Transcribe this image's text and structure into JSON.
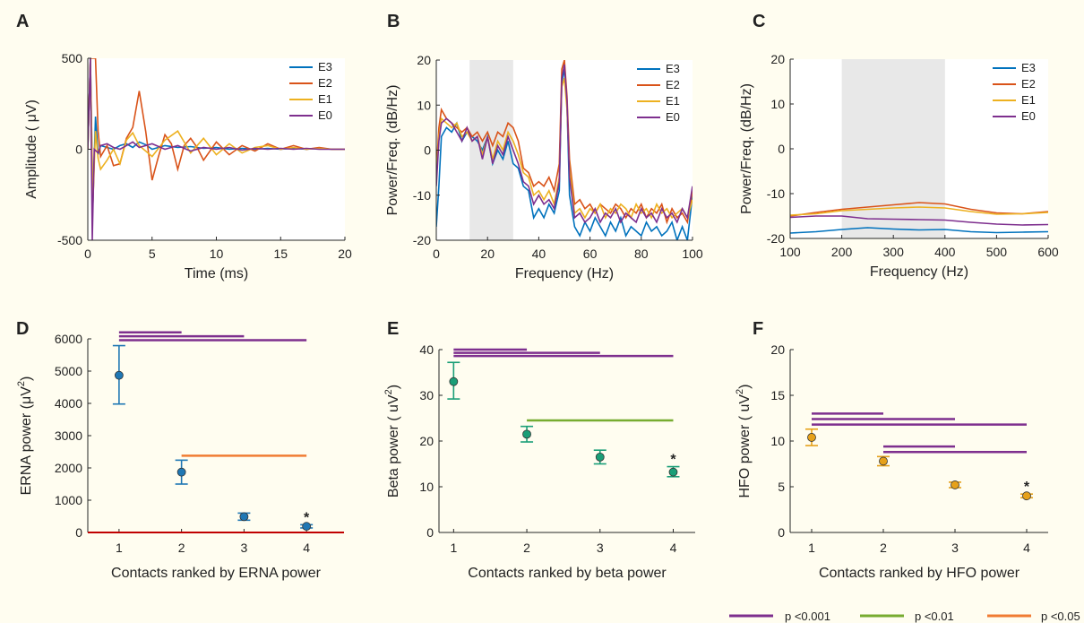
{
  "legend": {
    "label_p001": "p <0.001",
    "label_p01": "p <0.01",
    "label_p05": "p <0.05",
    "color_p001": "#7e2f8e",
    "color_p01": "#77ac30",
    "color_p05": "#f07c33"
  },
  "colors": {
    "E3": "#0072bd",
    "E2": "#d95319",
    "E1": "#edb120",
    "E0": "#7e2f8e",
    "shade": "#e8e8e8",
    "zero_line_D": "#c00000",
    "D_marker": "#1f77b4",
    "E_marker": "#1a9e77",
    "F_marker": "#e6a11a"
  },
  "chart_data": [
    {
      "letter": "A",
      "type": "line",
      "xlabel": "Time (ms)",
      "ylabel": "Amplitude ( μV)",
      "xlim": [
        0,
        20
      ],
      "ylim": [
        -500,
        500
      ],
      "xticks": [
        0,
        5,
        10,
        15,
        20
      ],
      "yticks": [
        -500,
        0,
        500
      ],
      "legend_position": "top-right",
      "series": [
        {
          "name": "E3",
          "color": "#0072bd",
          "x": [
            0,
            0.2,
            0.4,
            0.6,
            0.8,
            1.0,
            1.5,
            2.0,
            2.5,
            3.0,
            3.5,
            4.0,
            4.5,
            5.0,
            6.0,
            7.0,
            8.0,
            9.0,
            10,
            11,
            12,
            13,
            14,
            15,
            16,
            17,
            18,
            19,
            20
          ],
          "y": [
            0,
            500,
            -300,
            180,
            -30,
            20,
            10,
            0,
            20,
            30,
            10,
            40,
            25,
            0,
            20,
            10,
            15,
            5,
            10,
            0,
            5,
            0,
            5,
            0,
            5,
            0,
            5,
            0,
            0
          ]
        },
        {
          "name": "E2",
          "color": "#d95319",
          "x": [
            0,
            0.2,
            0.4,
            0.6,
            0.8,
            1.0,
            1.5,
            2.0,
            2.5,
            3.0,
            3.5,
            4.0,
            4.5,
            5.0,
            5.5,
            6.0,
            6.5,
            7.0,
            7.5,
            8.0,
            8.5,
            9.0,
            10,
            11,
            12,
            13,
            14,
            15,
            16,
            17,
            18,
            19,
            20
          ],
          "y": [
            0,
            500,
            500,
            500,
            100,
            -40,
            20,
            -90,
            -80,
            60,
            120,
            320,
            100,
            -170,
            -40,
            80,
            30,
            -110,
            20,
            60,
            10,
            -60,
            40,
            -30,
            20,
            -10,
            30,
            0,
            20,
            0,
            10,
            0,
            0
          ]
        },
        {
          "name": "E1",
          "color": "#edb120",
          "x": [
            0,
            0.2,
            0.4,
            0.6,
            0.8,
            1.0,
            1.5,
            2.0,
            2.5,
            3.0,
            3.5,
            4.0,
            5.0,
            6.0,
            7.0,
            8.0,
            9.0,
            10,
            11,
            12,
            13,
            14,
            15,
            16,
            17,
            18,
            19,
            20
          ],
          "y": [
            0,
            500,
            -300,
            100,
            -50,
            -110,
            -60,
            0,
            -80,
            50,
            90,
            20,
            -40,
            50,
            100,
            -20,
            60,
            -30,
            30,
            -20,
            10,
            20,
            0,
            10,
            0,
            5,
            0,
            0
          ]
        },
        {
          "name": "E0",
          "color": "#7e2f8e",
          "x": [
            0,
            0.2,
            0.35,
            0.5,
            0.8,
            1.0,
            1.5,
            2.0,
            2.5,
            3.0,
            3.5,
            4.0,
            5.0,
            6.0,
            7.0,
            8.0,
            9.0,
            10,
            11,
            12,
            13,
            14,
            15,
            16,
            17,
            18,
            19,
            20
          ],
          "y": [
            0,
            500,
            -500,
            0,
            -20,
            20,
            30,
            10,
            0,
            20,
            40,
            10,
            30,
            0,
            20,
            -10,
            10,
            0,
            10,
            -5,
            5,
            0,
            5,
            0,
            5,
            0,
            0,
            0
          ]
        }
      ]
    },
    {
      "letter": "B",
      "type": "line",
      "xlabel": "Frequency (Hz)",
      "ylabel": "Power/Freq. (dB/Hz)",
      "xlim": [
        0,
        100
      ],
      "ylim": [
        -20,
        20
      ],
      "xticks": [
        0,
        20,
        40,
        60,
        80,
        100
      ],
      "yticks": [
        -20,
        -10,
        0,
        10,
        20
      ],
      "shaded_x": [
        13,
        30
      ],
      "legend_position": "top-right",
      "series": [
        {
          "name": "E3",
          "color": "#0072bd",
          "x": [
            0,
            1,
            2,
            4,
            6,
            8,
            10,
            12,
            14,
            16,
            18,
            20,
            22,
            24,
            26,
            28,
            30,
            32,
            34,
            36,
            38,
            40,
            42,
            44,
            46,
            48,
            49,
            50,
            51,
            52,
            54,
            56,
            58,
            60,
            62,
            64,
            66,
            68,
            70,
            72,
            74,
            76,
            78,
            80,
            82,
            84,
            86,
            88,
            90,
            92,
            94,
            96,
            98,
            100
          ],
          "y": [
            -17,
            -8,
            3,
            5,
            4,
            6,
            2,
            4,
            3,
            2,
            0,
            3,
            -3,
            0,
            -2,
            2,
            -3,
            -4,
            -8,
            -9,
            -15,
            -13,
            -15,
            -12,
            -14,
            -9,
            15,
            18,
            10,
            -10,
            -17,
            -19,
            -16,
            -18,
            -15,
            -17,
            -19,
            -16,
            -18,
            -15,
            -19,
            -17,
            -18,
            -19,
            -16,
            -18,
            -17,
            -19,
            -18,
            -16,
            -20,
            -17,
            -20,
            -10
          ]
        },
        {
          "name": "E2",
          "color": "#d95319",
          "x": [
            0,
            1,
            2,
            4,
            6,
            8,
            10,
            12,
            14,
            16,
            18,
            20,
            22,
            24,
            26,
            28,
            30,
            32,
            34,
            36,
            38,
            40,
            42,
            44,
            46,
            48,
            49,
            50,
            51,
            52,
            54,
            56,
            58,
            60,
            62,
            64,
            66,
            68,
            70,
            72,
            74,
            76,
            78,
            80,
            82,
            84,
            86,
            88,
            90,
            92,
            94,
            96,
            98,
            100
          ],
          "y": [
            -5,
            5,
            9,
            7,
            6,
            5,
            4,
            5,
            3,
            4,
            2,
            4,
            1,
            4,
            3,
            6,
            5,
            2,
            -4,
            -5,
            -8,
            -7,
            -8,
            -6,
            -9,
            -3,
            18,
            20,
            12,
            -2,
            -12,
            -11,
            -13,
            -12,
            -14,
            -12,
            -13,
            -14,
            -12,
            -13,
            -15,
            -13,
            -14,
            -12,
            -15,
            -13,
            -14,
            -12,
            -16,
            -13,
            -15,
            -14,
            -16,
            -9
          ]
        },
        {
          "name": "E1",
          "color": "#edb120",
          "x": [
            0,
            1,
            2,
            4,
            6,
            8,
            10,
            12,
            14,
            16,
            18,
            20,
            22,
            24,
            26,
            28,
            30,
            32,
            34,
            36,
            38,
            40,
            42,
            44,
            46,
            48,
            49,
            50,
            51,
            52,
            54,
            56,
            58,
            60,
            62,
            64,
            66,
            68,
            70,
            72,
            74,
            76,
            78,
            80,
            82,
            84,
            86,
            88,
            90,
            92,
            94,
            96,
            98,
            100
          ],
          "y": [
            -6,
            3,
            7,
            6,
            5,
            6,
            3,
            4,
            2,
            3,
            -1,
            3,
            -2,
            2,
            0,
            4,
            2,
            -1,
            -5,
            -6,
            -10,
            -9,
            -11,
            -9,
            -12,
            -6,
            14,
            16,
            9,
            -4,
            -14,
            -13,
            -15,
            -13,
            -14,
            -12,
            -15,
            -13,
            -14,
            -12,
            -13,
            -15,
            -12,
            -14,
            -13,
            -15,
            -12,
            -14,
            -13,
            -15,
            -14,
            -13,
            -15,
            -11
          ]
        },
        {
          "name": "E0",
          "color": "#7e2f8e",
          "x": [
            0,
            1,
            2,
            4,
            6,
            8,
            10,
            12,
            14,
            16,
            18,
            20,
            22,
            24,
            26,
            28,
            30,
            32,
            34,
            36,
            38,
            40,
            42,
            44,
            46,
            48,
            49,
            50,
            51,
            52,
            54,
            56,
            58,
            60,
            62,
            64,
            66,
            68,
            70,
            72,
            74,
            76,
            78,
            80,
            82,
            84,
            86,
            88,
            90,
            92,
            94,
            96,
            98,
            100
          ],
          "y": [
            -8,
            2,
            6,
            7,
            6,
            4,
            2,
            5,
            2,
            3,
            -2,
            3,
            -3,
            1,
            -1,
            3,
            0,
            -3,
            -7,
            -8,
            -12,
            -10,
            -12,
            -11,
            -13,
            -7,
            16,
            19,
            11,
            -6,
            -15,
            -14,
            -16,
            -15,
            -13,
            -16,
            -14,
            -15,
            -13,
            -16,
            -14,
            -15,
            -16,
            -13,
            -15,
            -14,
            -16,
            -13,
            -15,
            -14,
            -16,
            -13,
            -15,
            -8
          ]
        }
      ]
    },
    {
      "letter": "C",
      "type": "line",
      "xlabel": "Frequency (Hz)",
      "ylabel": "Power/Freq. (dB/Hz)",
      "xlim": [
        100,
        600
      ],
      "ylim": [
        -20,
        20
      ],
      "xticks": [
        100,
        200,
        300,
        400,
        500,
        600
      ],
      "yticks": [
        -20,
        -10,
        0,
        10,
        20
      ],
      "shaded_x": [
        200,
        400
      ],
      "legend_position": "top-right",
      "series": [
        {
          "name": "E3",
          "color": "#0072bd",
          "x": [
            100,
            150,
            200,
            250,
            300,
            350,
            400,
            450,
            500,
            550,
            600
          ],
          "y": [
            -18.8,
            -18.5,
            -18.0,
            -17.6,
            -17.9,
            -18.1,
            -18.0,
            -18.5,
            -18.7,
            -18.6,
            -18.5
          ]
        },
        {
          "name": "E2",
          "color": "#d95319",
          "x": [
            100,
            150,
            200,
            250,
            300,
            350,
            400,
            450,
            500,
            550,
            600
          ],
          "y": [
            -15.0,
            -14.2,
            -13.5,
            -13.0,
            -12.5,
            -12.0,
            -12.3,
            -13.5,
            -14.3,
            -14.5,
            -14.0
          ]
        },
        {
          "name": "E1",
          "color": "#edb120",
          "x": [
            100,
            150,
            200,
            250,
            300,
            350,
            400,
            450,
            500,
            550,
            600
          ],
          "y": [
            -14.8,
            -14.5,
            -13.8,
            -13.5,
            -13.2,
            -13.0,
            -13.2,
            -14.0,
            -14.6,
            -14.5,
            -14.2
          ]
        },
        {
          "name": "E0",
          "color": "#7e2f8e",
          "x": [
            100,
            150,
            200,
            250,
            300,
            350,
            400,
            450,
            500,
            550,
            600
          ],
          "y": [
            -15.3,
            -15.0,
            -15.0,
            -15.6,
            -15.7,
            -15.8,
            -15.9,
            -16.4,
            -16.8,
            -17.0,
            -16.9
          ]
        }
      ]
    },
    {
      "letter": "D",
      "type": "scatter",
      "xlabel": "Contacts ranked by ERNA power",
      "ylabel": "ERNA power (μV",
      "ylabel_sup": "2",
      "ylabel_close": ")",
      "categories": [
        "1",
        "2",
        "3",
        "4"
      ],
      "values": [
        4870,
        1870,
        490,
        190
      ],
      "error_low": [
        3980,
        1500,
        380,
        140
      ],
      "error_high": [
        5790,
        2240,
        600,
        240
      ],
      "xlim": [
        0.5,
        4.6
      ],
      "ylim": [
        0,
        6000
      ],
      "yticks": [
        0,
        1000,
        2000,
        3000,
        4000,
        5000,
        6000
      ],
      "zero_line": true,
      "star_at": 4,
      "star_label": "*",
      "sig_bars": [
        {
          "from": 1,
          "to": 2,
          "y": 6200,
          "level": "p001"
        },
        {
          "from": 1,
          "to": 3,
          "y": 6080,
          "level": "p001"
        },
        {
          "from": 1,
          "to": 4,
          "y": 5960,
          "level": "p001"
        },
        {
          "from": 2,
          "to": 4,
          "y": 2380,
          "level": "p05"
        }
      ]
    },
    {
      "letter": "E",
      "type": "scatter",
      "xlabel": "Contacts ranked by beta power",
      "ylabel": "Beta power ( uV",
      "ylabel_sup": "2",
      "ylabel_close": ")",
      "categories": [
        "1",
        "2",
        "3",
        "4"
      ],
      "values": [
        33.0,
        21.5,
        16.5,
        13.2
      ],
      "error_low": [
        29.2,
        19.8,
        15.0,
        12.2
      ],
      "error_high": [
        37.2,
        23.2,
        18.0,
        14.4
      ],
      "xlim": [
        0.8,
        4.3
      ],
      "ylim": [
        0,
        40
      ],
      "yticks": [
        0,
        10,
        20,
        30,
        40
      ],
      "star_at": 4,
      "star_label": "*",
      "sig_bars": [
        {
          "from": 1,
          "to": 2,
          "y": 40.0,
          "level": "p001"
        },
        {
          "from": 1,
          "to": 3,
          "y": 39.3,
          "level": "p001"
        },
        {
          "from": 1,
          "to": 4,
          "y": 38.6,
          "level": "p001"
        },
        {
          "from": 2,
          "to": 4,
          "y": 24.5,
          "level": "p01"
        }
      ]
    },
    {
      "letter": "F",
      "type": "scatter",
      "xlabel": "Contacts ranked by HFO power",
      "ylabel": "HFO power ( uV",
      "ylabel_sup": "2",
      "ylabel_close": ")",
      "categories": [
        "1",
        "2",
        "3",
        "4"
      ],
      "values": [
        10.4,
        7.8,
        5.2,
        4.0
      ],
      "error_low": [
        9.5,
        7.3,
        4.9,
        3.8
      ],
      "error_high": [
        11.3,
        8.3,
        5.5,
        4.2
      ],
      "xlim": [
        0.7,
        4.3
      ],
      "ylim": [
        0,
        20
      ],
      "yticks": [
        0,
        5,
        10,
        15,
        20
      ],
      "star_at": 4,
      "star_label": "*",
      "sig_bars": [
        {
          "from": 1,
          "to": 2,
          "y": 13.0,
          "level": "p001"
        },
        {
          "from": 1,
          "to": 3,
          "y": 12.4,
          "level": "p001"
        },
        {
          "from": 1,
          "to": 4,
          "y": 11.8,
          "level": "p001"
        },
        {
          "from": 2,
          "to": 3,
          "y": 9.4,
          "level": "p001"
        },
        {
          "from": 2,
          "to": 4,
          "y": 8.8,
          "level": "p001"
        }
      ]
    }
  ]
}
